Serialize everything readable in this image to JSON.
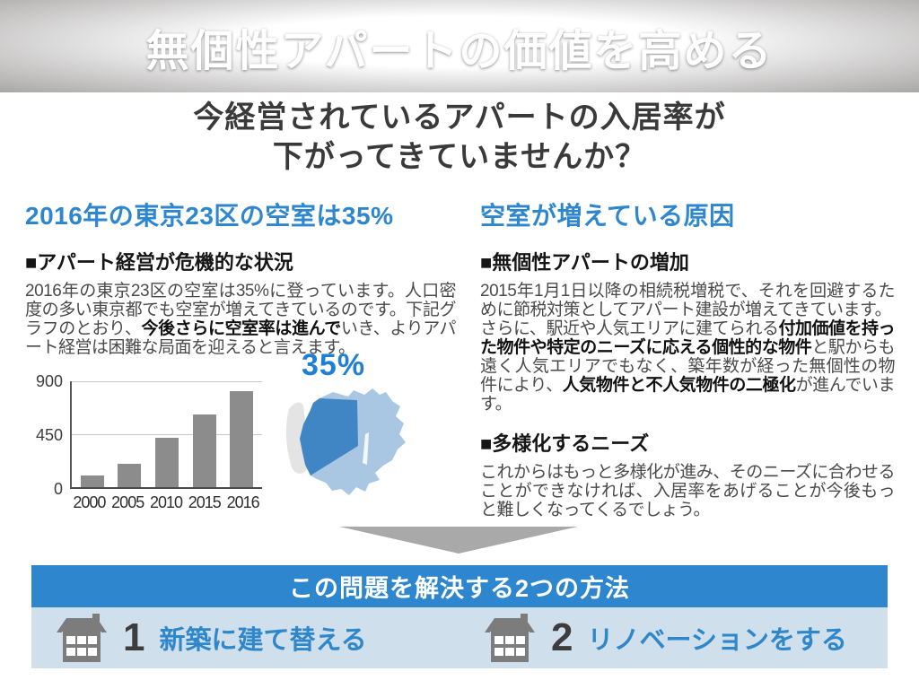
{
  "header": {
    "title": "無個性アパートの価値を高める"
  },
  "intro": {
    "line1": "今経営されているアパートの入居率が",
    "line2": "下がってきていませんか？"
  },
  "left": {
    "heading": "2016年の東京23区の空室は35%",
    "section_title": "■アパート経営が危機的な状況",
    "paragraph": [
      {
        "text": "2016年の東京23区の空室は35%に登っています。人口密度の多い東京都でも空室が増えてきているのです。下記グラフのとおり、",
        "bold": false
      },
      {
        "text": "今後さらに空室率は進んで",
        "bold": true
      },
      {
        "text": "いき、よりアパート経営は困難な局面を迎えると言えます。",
        "bold": false
      }
    ],
    "map_label": "35%"
  },
  "chart_data": {
    "type": "bar",
    "categories": [
      "2000",
      "2005",
      "2010",
      "2015",
      "2016"
    ],
    "values": [
      100,
      200,
      420,
      620,
      820
    ],
    "yticks": [
      0,
      450,
      900
    ],
    "ylim": [
      0,
      900
    ],
    "bar_color": "#8c8c8c",
    "title": "",
    "xlabel": "",
    "ylabel": "",
    "grid": true,
    "legend": false
  },
  "right": {
    "heading": "空室が増えている原因",
    "section1_title": "■無個性アパートの増加",
    "section1_para1": [
      {
        "text": "2015年1月1日以降の相続税増税で、それを回避するために節税対策としてアパート建設が増えてきています。",
        "bold": false
      }
    ],
    "section1_para2": [
      {
        "text": "さらに、駅近や人気エリアに建てられる",
        "bold": false
      },
      {
        "text": "付加価値を持った物件や特定のニーズに応える個性的な物件",
        "bold": true
      },
      {
        "text": "と駅からも遠く人気エリアでもなく、築年数が経った無個性の物件により、",
        "bold": false
      },
      {
        "text": "人気物件と不人気物件の二極化",
        "bold": true
      },
      {
        "text": "が進んでいます。",
        "bold": false
      }
    ],
    "section2_title": "■多様化するニーズ",
    "section2_para": [
      {
        "text": "これからはもっと多様化が進み、そのニーズに合わせることができなければ、入居率をあげることが今後もっと難しくなってくるでしょう。",
        "bold": false
      }
    ]
  },
  "solution": {
    "banner": "この問題を解決する2つの方法",
    "methods": [
      {
        "number": "1",
        "label": "新築に建て替える",
        "icon": "house-icon"
      },
      {
        "number": "2",
        "label": "リノベーションをする",
        "icon": "house-icon"
      }
    ]
  },
  "icons": {
    "method_icon": "house-icon",
    "arrow": "down-arrow-icon"
  },
  "colors": {
    "accent_blue": "#2e86cf",
    "map_label_blue": "#1f7fd2",
    "light_blue_bg": "#cfdfeb",
    "map_dark_blue": "#4186c4",
    "map_light_blue": "#a9c7e2",
    "map_gray": "#e4e4e4",
    "bar_gray": "#8c8c8c",
    "arrow_gray": "#a9a9a9",
    "banner_text": "#ffffff"
  }
}
